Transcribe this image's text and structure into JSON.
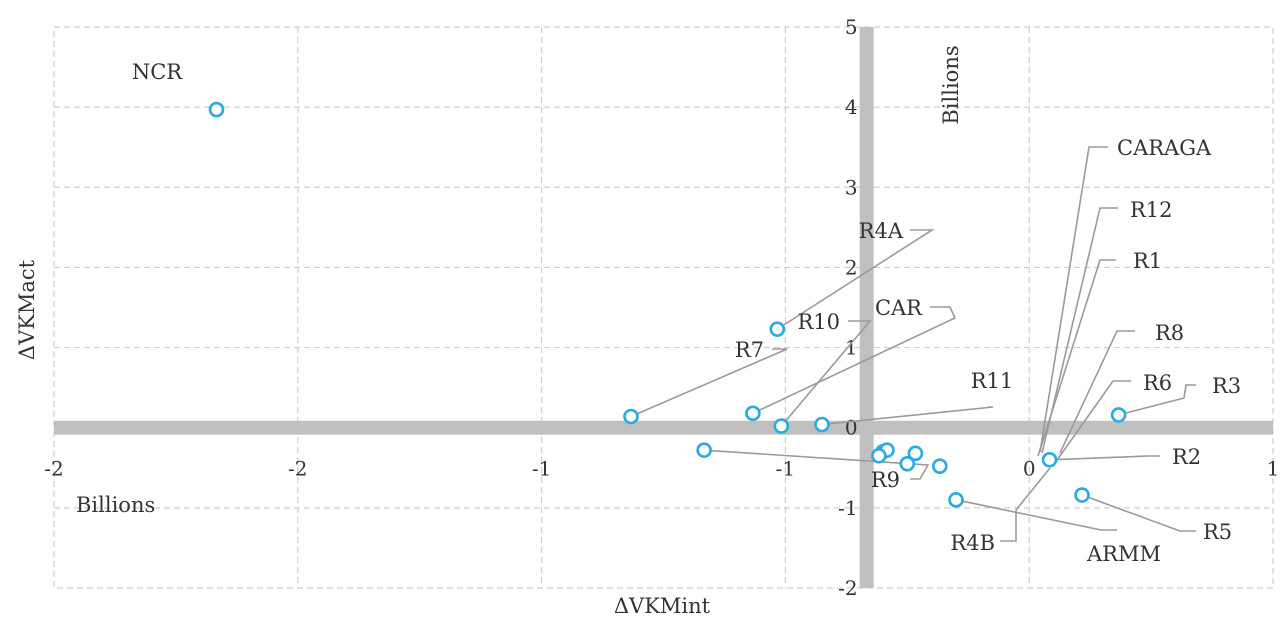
{
  "chart_data": {
    "type": "scatter",
    "xlabel": "ΔVKMint",
    "ylabel": "ΔVKMact",
    "x_unit": "Billions",
    "y_unit": "Billions",
    "xlim": [
      -2,
      1
    ],
    "ylim": [
      -2,
      5
    ],
    "x_ticks": [
      "-2",
      "-2",
      "-1",
      "-1",
      "0",
      "1"
    ],
    "y_ticks": [
      "-2",
      "-1",
      "0",
      "1",
      "2",
      "3",
      "4",
      "5"
    ],
    "grid": true,
    "marker_color": "#29aae1",
    "points": [
      {
        "label": "NCR",
        "x": -1.6,
        "y": 3.97
      },
      {
        "label": "R4A",
        "x": -0.22,
        "y": 1.23
      },
      {
        "label": "R7",
        "x": -0.58,
        "y": 0.14
      },
      {
        "label": "CAR",
        "x": -0.28,
        "y": 0.18
      },
      {
        "label": "R10",
        "x": -0.21,
        "y": 0.02
      },
      {
        "label": "R11",
        "x": -0.11,
        "y": 0.04
      },
      {
        "label": "R9",
        "x": -0.4,
        "y": -0.28
      },
      {
        "label": "CARAGA",
        "x": 0.04,
        "y": -0.3
      },
      {
        "label": "R12",
        "x": 0.05,
        "y": -0.28
      },
      {
        "label": "R1",
        "x": 0.03,
        "y": -0.35
      },
      {
        "label": "R8",
        "x": 0.12,
        "y": -0.32
      },
      {
        "label": "R6",
        "x": 0.1,
        "y": -0.45
      },
      {
        "label": "R4B",
        "x": 0.18,
        "y": -0.48
      },
      {
        "label": "R3",
        "x": 0.62,
        "y": 0.16
      },
      {
        "label": "R2",
        "x": 0.45,
        "y": -0.4
      },
      {
        "label": "R5",
        "x": 0.53,
        "y": -0.84
      },
      {
        "label": "ARMM",
        "x": 0.22,
        "y": -0.9
      }
    ]
  }
}
